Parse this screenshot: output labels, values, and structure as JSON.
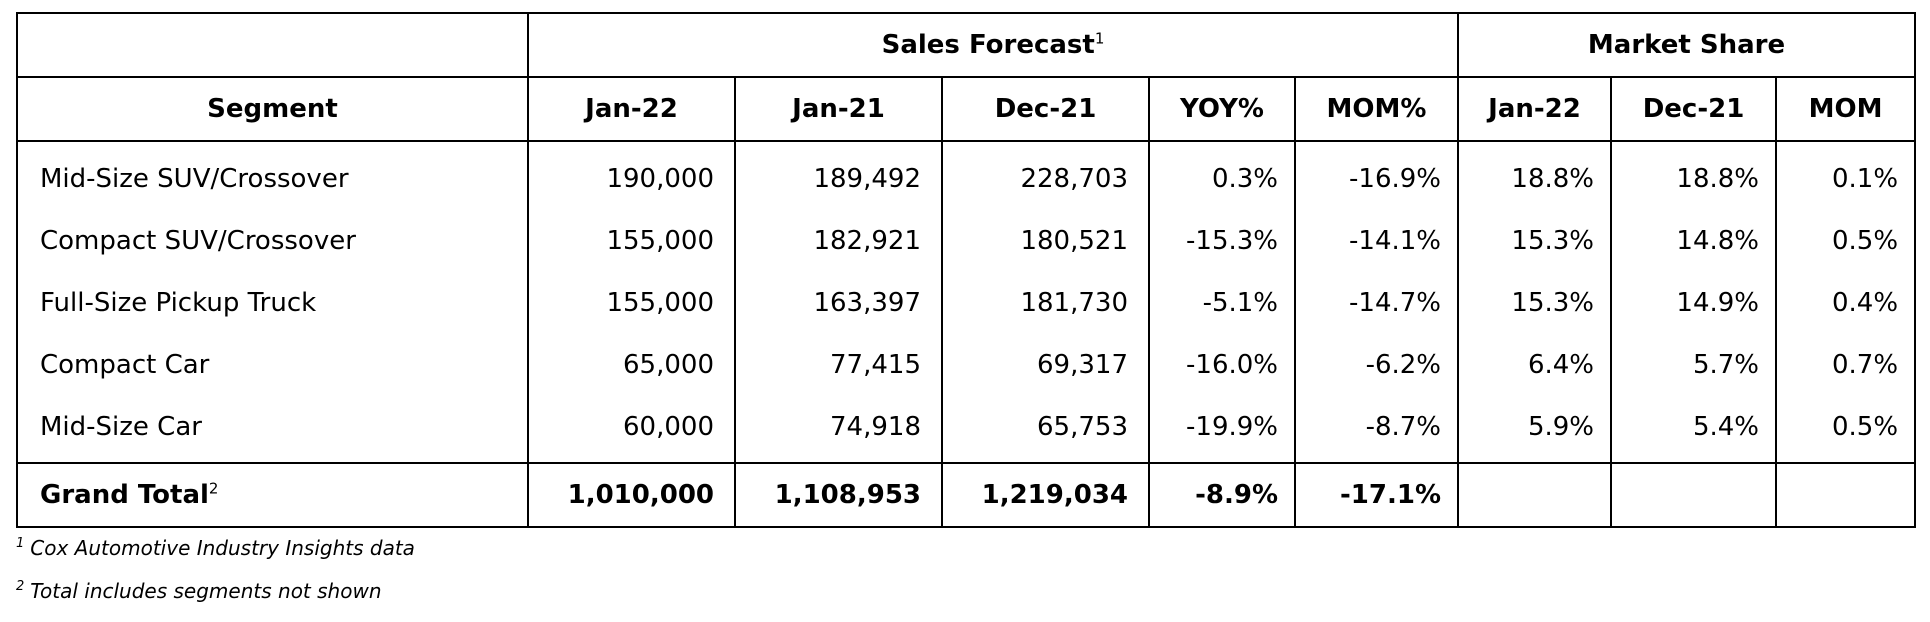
{
  "chart_data": {
    "type": "table",
    "group_headers": {
      "sales_forecast": "Sales Forecast",
      "sales_forecast_note": "1",
      "market_share": "Market Share"
    },
    "columns": [
      "Segment",
      "Jan-22",
      "Jan-21",
      "Dec-21",
      "YOY%",
      "MOM%",
      "Jan-22",
      "Dec-21",
      "MOM"
    ],
    "rows": [
      [
        "Mid-Size SUV/Crossover",
        "190,000",
        "189,492",
        "228,703",
        "0.3%",
        "-16.9%",
        "18.8%",
        "18.8%",
        "0.1%"
      ],
      [
        "Compact SUV/Crossover",
        "155,000",
        "182,921",
        "180,521",
        "-15.3%",
        "-14.1%",
        "15.3%",
        "14.8%",
        "0.5%"
      ],
      [
        "Full-Size Pickup Truck",
        "155,000",
        "163,397",
        "181,730",
        "-5.1%",
        "-14.7%",
        "15.3%",
        "14.9%",
        "0.4%"
      ],
      [
        "Compact Car",
        "65,000",
        "77,415",
        "69,317",
        "-16.0%",
        "-6.2%",
        "6.4%",
        "5.7%",
        "0.7%"
      ],
      [
        "Mid-Size Car",
        "60,000",
        "74,918",
        "65,753",
        "-19.9%",
        "-8.7%",
        "5.9%",
        "5.4%",
        "0.5%"
      ]
    ],
    "total": {
      "label": "Grand Total",
      "note": "2",
      "values": [
        "1,010,000",
        "1,108,953",
        "1,219,034",
        "-8.9%",
        "-17.1%",
        "",
        "",
        ""
      ]
    }
  },
  "footnotes": [
    {
      "mark": "1",
      "text": "Cox Automotive Industry Insights data"
    },
    {
      "mark": "2",
      "text": "Total includes segments not shown"
    }
  ]
}
